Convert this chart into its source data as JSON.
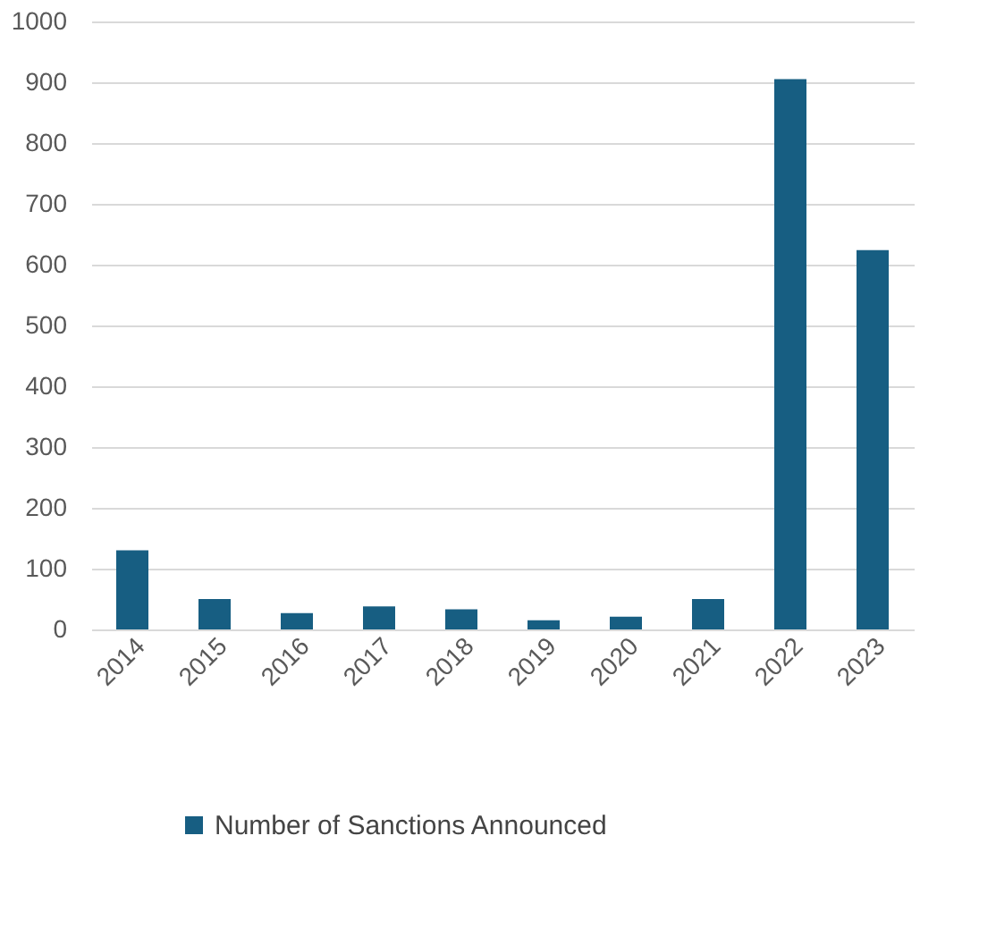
{
  "chart_data": {
    "type": "bar",
    "categories": [
      "2014",
      "2015",
      "2016",
      "2017",
      "2018",
      "2019",
      "2020",
      "2021",
      "2022",
      "2023"
    ],
    "series": [
      {
        "name": "Number of Sanctions Announced",
        "color": "#175e82",
        "values": [
          130,
          50,
          27,
          38,
          33,
          15,
          21,
          50,
          905,
          624
        ]
      }
    ],
    "ylim": [
      0,
      1000
    ],
    "yticks": [
      0,
      100,
      200,
      300,
      400,
      500,
      600,
      700,
      800,
      900,
      1000
    ],
    "grid": "y",
    "legend": "bottom"
  }
}
